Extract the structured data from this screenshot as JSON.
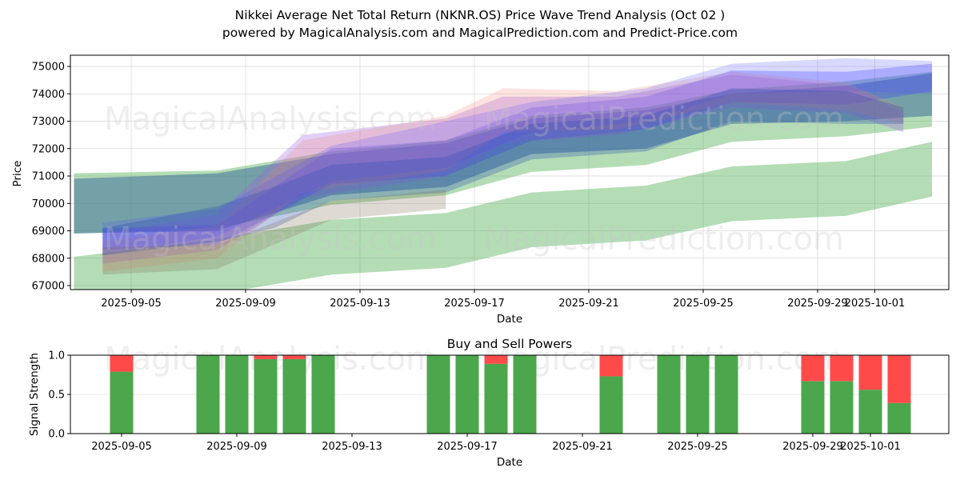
{
  "header": {
    "title": "Nikkei Average Net Total Return (NKNR.OS) Price Wave Trend Analysis (Oct 02 )",
    "subtitle": "powered by MagicalAnalysis.com and MagicalPrediction.com and Predict-Price.com"
  },
  "watermarks": [
    "MagicalAnalysis.com",
    "MagicalPrediction.com"
  ],
  "chart_data": [
    {
      "type": "area",
      "title": "",
      "xlabel": "Date",
      "ylabel": "Price",
      "grid": true,
      "x_range": [
        "2025-09-02",
        "2025-10-04"
      ],
      "ylim": [
        66850,
        75400
      ],
      "yticks": [
        67000,
        68000,
        69000,
        70000,
        71000,
        72000,
        73000,
        74000,
        75000
      ],
      "xticks": [
        "2025-09-05",
        "2025-09-09",
        "2025-09-13",
        "2025-09-17",
        "2025-09-21",
        "2025-09-25",
        "2025-09-29",
        "2025-10-01"
      ],
      "series": [
        {
          "name": "green-low-band",
          "color": "#4caf50",
          "opacity": 0.42,
          "x": [
            "2025-09-03",
            "2025-09-08",
            "2025-09-12",
            "2025-09-16",
            "2025-09-19",
            "2025-09-23",
            "2025-09-26",
            "2025-09-30",
            "2025-10-03"
          ],
          "upper": [
            68050,
            68700,
            69400,
            69650,
            70400,
            70650,
            71350,
            71550,
            72250
          ],
          "lower": [
            66500,
            66700,
            67400,
            67650,
            68400,
            68650,
            69350,
            69550,
            70250
          ]
        },
        {
          "name": "green-high-band",
          "color": "#4caf50",
          "opacity": 0.42,
          "x": [
            "2025-09-03",
            "2025-09-08",
            "2025-09-12",
            "2025-09-16",
            "2025-09-19",
            "2025-09-23",
            "2025-09-26",
            "2025-09-30",
            "2025-10-03"
          ],
          "upper": [
            71100,
            71200,
            71900,
            72300,
            73200,
            73500,
            74150,
            74450,
            74800
          ],
          "lower": [
            68900,
            69100,
            69950,
            70300,
            71150,
            71400,
            72250,
            72450,
            72800
          ]
        },
        {
          "name": "slate-band",
          "color": "#3f6f9a",
          "opacity": 0.55,
          "x": [
            "2025-09-03",
            "2025-09-08",
            "2025-09-12",
            "2025-09-16",
            "2025-09-19",
            "2025-09-23",
            "2025-09-26",
            "2025-09-30",
            "2025-10-03"
          ],
          "upper": [
            70900,
            71100,
            71800,
            72200,
            73100,
            73400,
            74000,
            74300,
            74750
          ],
          "lower": [
            68900,
            69000,
            70300,
            70600,
            71800,
            72000,
            72900,
            73000,
            73200
          ]
        },
        {
          "name": "blue-band-1",
          "color": "#3a3aff",
          "opacity": 0.3,
          "x": [
            "2025-09-04",
            "2025-09-08",
            "2025-09-12",
            "2025-09-16",
            "2025-09-19",
            "2025-09-23",
            "2025-09-26",
            "2025-09-30",
            "2025-10-03"
          ],
          "upper": [
            69100,
            69200,
            72000,
            72300,
            73500,
            73900,
            74850,
            74800,
            75100
          ],
          "lower": [
            68300,
            68500,
            70700,
            71000,
            72300,
            72700,
            73700,
            73600,
            74100
          ]
        },
        {
          "name": "purple-band",
          "color": "#a060e0",
          "opacity": 0.3,
          "x": [
            "2025-09-04",
            "2025-09-08",
            "2025-09-11",
            "2025-09-16",
            "2025-09-18",
            "2025-09-22",
            "2025-09-26",
            "2025-09-30",
            "2025-10-02"
          ],
          "upper": [
            68900,
            69600,
            72500,
            73100,
            73900,
            73900,
            74700,
            74300,
            73300
          ],
          "lower": [
            67800,
            68300,
            70200,
            71000,
            72200,
            72500,
            73500,
            73300,
            72600
          ]
        },
        {
          "name": "salmon-band",
          "color": "#f08070",
          "opacity": 0.22,
          "x": [
            "2025-09-04",
            "2025-09-08",
            "2025-09-11",
            "2025-09-16",
            "2025-09-18",
            "2025-09-22",
            "2025-09-26",
            "2025-09-30",
            "2025-10-02"
          ],
          "upper": [
            68600,
            69200,
            72300,
            73200,
            74200,
            74100,
            74800,
            74400,
            73500
          ],
          "lower": [
            67500,
            68000,
            70400,
            71200,
            72600,
            72700,
            73700,
            73400,
            72900
          ]
        },
        {
          "name": "blue-band-2",
          "color": "#5050ff",
          "opacity": 0.22,
          "x": [
            "2025-09-04",
            "2025-09-08",
            "2025-09-12",
            "2025-09-16",
            "2025-09-19",
            "2025-09-23",
            "2025-09-26",
            "2025-09-30",
            "2025-10-03"
          ],
          "upper": [
            69300,
            69800,
            72100,
            73000,
            73700,
            74200,
            75100,
            75300,
            75200
          ],
          "lower": [
            68100,
            68800,
            70800,
            71300,
            72600,
            73000,
            74000,
            74100,
            74000
          ]
        },
        {
          "name": "dark-blue-band",
          "color": "#2a4fb0",
          "opacity": 0.3,
          "x": [
            "2025-09-04",
            "2025-09-08",
            "2025-09-10",
            "2025-09-12",
            "2025-09-16",
            "2025-09-19",
            "2025-09-23",
            "2025-09-26",
            "2025-09-30",
            "2025-10-02"
          ],
          "upper": [
            69100,
            69900,
            70600,
            71400,
            71700,
            72900,
            73200,
            74200,
            74100,
            73500
          ],
          "lower": [
            68100,
            68600,
            69100,
            70100,
            70400,
            71600,
            71900,
            73000,
            72900,
            72900
          ]
        },
        {
          "name": "brown-band",
          "color": "#7a6a50",
          "opacity": 0.25,
          "x": [
            "2025-09-04",
            "2025-09-08",
            "2025-09-12",
            "2025-09-16"
          ],
          "upper": [
            68400,
            68500,
            70100,
            70500
          ],
          "lower": [
            67400,
            67600,
            69400,
            69800
          ]
        }
      ]
    },
    {
      "type": "bar",
      "title": "Buy and Sell Powers",
      "xlabel": "Date",
      "ylabel": "Signal Strength",
      "ylim": [
        0,
        1
      ],
      "yticks": [
        "0.0",
        "0.5",
        "1.0"
      ],
      "grid": true,
      "x_range": [
        "2025-09-02",
        "2025-10-04"
      ],
      "xticks": [
        "2025-09-05",
        "2025-09-09",
        "2025-09-13",
        "2025-09-17",
        "2025-09-21",
        "2025-09-25",
        "2025-09-29",
        "2025-10-01"
      ],
      "buy_color": "#4ca64c",
      "sell_color": "#ff4a4a",
      "categories": [
        "2025-09-05",
        "2025-09-08",
        "2025-09-09",
        "2025-09-10",
        "2025-09-11",
        "2025-09-12",
        "2025-09-16",
        "2025-09-17",
        "2025-09-18",
        "2025-09-19",
        "2025-09-22",
        "2025-09-24",
        "2025-09-25",
        "2025-09-26",
        "2025-09-29",
        "2025-09-30",
        "2025-10-01",
        "2025-10-02"
      ],
      "series": [
        {
          "name": "buy",
          "values": [
            0.79,
            1.0,
            1.0,
            0.95,
            0.95,
            1.0,
            1.0,
            1.0,
            0.89,
            1.0,
            0.73,
            1.0,
            1.0,
            1.0,
            0.67,
            0.67,
            0.56,
            0.39
          ]
        },
        {
          "name": "sell",
          "values": [
            0.21,
            0.0,
            0.0,
            0.05,
            0.05,
            0.0,
            0.0,
            0.0,
            0.11,
            0.0,
            0.27,
            0.0,
            0.0,
            0.0,
            0.33,
            0.33,
            0.44,
            0.61
          ]
        }
      ]
    }
  ]
}
